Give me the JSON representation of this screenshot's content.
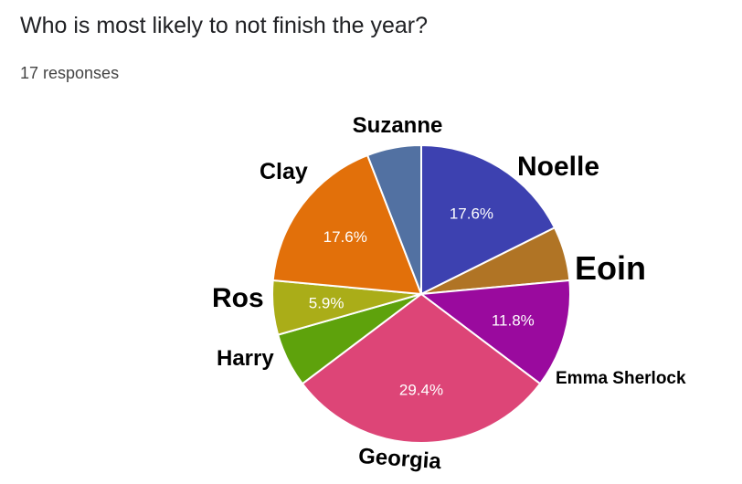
{
  "header": {
    "title": "Who is most likely to not finish the year?",
    "responses": "17 responses"
  },
  "chart_data": {
    "type": "pie",
    "title": "Who is most likely to not finish the year?",
    "total_responses": 17,
    "start_angle_deg": 0,
    "slices": [
      {
        "key": "noelle",
        "label": "Noelle",
        "value": 3,
        "percent_label": "17.6%",
        "color": "#3d41b0"
      },
      {
        "key": "eoin",
        "label": "Eoin",
        "value": 1,
        "percent_label": "",
        "color": "#b07425"
      },
      {
        "key": "emma",
        "label": "Emma Sherlock",
        "value": 2,
        "percent_label": "11.8%",
        "color": "#9a0a9e"
      },
      {
        "key": "georgia",
        "label": "Georgia",
        "value": 5,
        "percent_label": "29.4%",
        "color": "#dd4577"
      },
      {
        "key": "harry",
        "label": "Harry",
        "value": 1,
        "percent_label": "",
        "color": "#5ea20c"
      },
      {
        "key": "ros",
        "label": "Ros",
        "value": 1,
        "percent_label": "5.9%",
        "color": "#aaad18"
      },
      {
        "key": "clay",
        "label": "Clay",
        "value": 3,
        "percent_label": "17.6%",
        "color": "#e2700a"
      },
      {
        "key": "suzanne",
        "label": "Suzanne",
        "value": 1,
        "percent_label": "",
        "color": "#5271a2"
      }
    ]
  }
}
